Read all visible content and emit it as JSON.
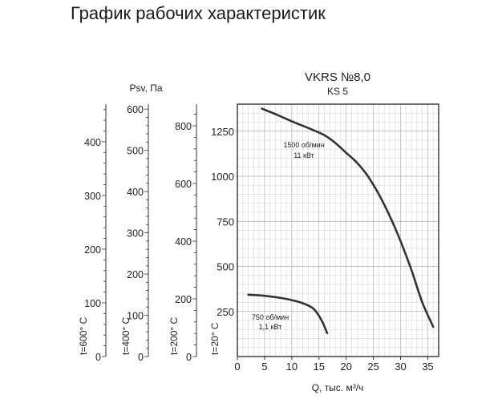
{
  "page": {
    "title": "График рабочих характеристик"
  },
  "chart_data": {
    "type": "line",
    "title": "VKRS №8,0",
    "subtitle": "KS 5",
    "xlabel": "Q, тыс. м³/ч",
    "ylabel": "Psv, Па",
    "xlim": [
      0,
      37
    ],
    "ylim": [
      0,
      1400
    ],
    "x_ticks": [
      0,
      5,
      10,
      15,
      20,
      25,
      30,
      35
    ],
    "y_ticks": [
      250,
      500,
      750,
      1000,
      1250
    ],
    "grid": true,
    "series": [
      {
        "name": "1500 об/мин",
        "power": "11 кВт",
        "x": [
          4.5,
          7,
          10,
          13,
          16,
          18,
          20,
          22,
          24,
          26,
          28,
          30,
          32,
          34,
          36
        ],
        "y": [
          1375,
          1345,
          1305,
          1268,
          1228,
          1185,
          1130,
          1075,
          1000,
          900,
          780,
          640,
          480,
          300,
          165
        ]
      },
      {
        "name": "750 об/мин",
        "power": "1,1 кВт",
        "x": [
          2,
          5,
          8,
          10,
          12,
          14,
          15.5,
          16.5
        ],
        "y": [
          343,
          337,
          325,
          313,
          296,
          265,
          200,
          130
        ]
      }
    ],
    "temperature_axes": [
      {
        "label": "t=600° C",
        "ticks": [
          0,
          100,
          200,
          300,
          400
        ],
        "max": 470
      },
      {
        "label": "t=400° C",
        "ticks": [
          0,
          100,
          200,
          300,
          400,
          500,
          600
        ],
        "max": 612
      },
      {
        "label": "t=200° C",
        "ticks": [
          0,
          200,
          400,
          600,
          800
        ],
        "max": 875
      },
      {
        "label": "t=20° C",
        "ticks": [],
        "max": 1400
      }
    ]
  }
}
